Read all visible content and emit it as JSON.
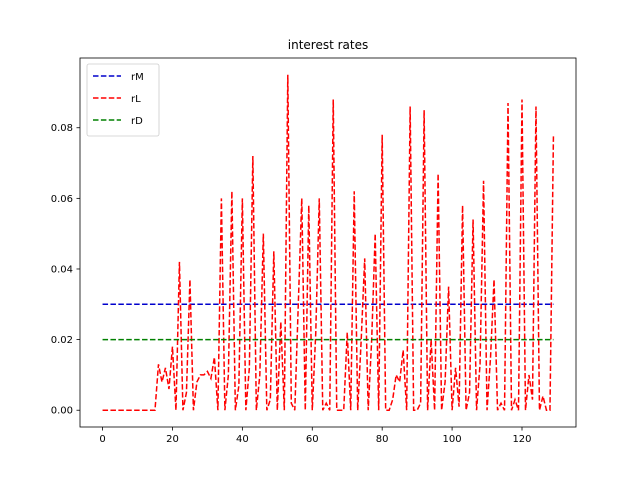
{
  "chart_data": {
    "type": "line",
    "title": "interest rates",
    "xlabel": "",
    "ylabel": "",
    "xlim": [
      -6.45,
      135.45
    ],
    "ylim": [
      -0.00475,
      0.09975
    ],
    "xticks": [
      0,
      20,
      40,
      60,
      80,
      100,
      120
    ],
    "xtick_labels": [
      "0",
      "20",
      "40",
      "60",
      "80",
      "100",
      "120"
    ],
    "yticks": [
      0.0,
      0.02,
      0.04,
      0.06,
      0.08
    ],
    "ytick_labels": [
      "0.00",
      "0.02",
      "0.04",
      "0.06",
      "0.08"
    ],
    "grid": false,
    "legend": {
      "position": "top-left"
    },
    "series": [
      {
        "name": "rM",
        "color": "#0000cc",
        "dash": "dashed",
        "x": [
          0,
          129
        ],
        "y": [
          0.03,
          0.03
        ]
      },
      {
        "name": "rL",
        "color": "#ff0000",
        "dash": "dashed",
        "x": [
          0,
          1,
          2,
          3,
          4,
          5,
          6,
          7,
          8,
          9,
          10,
          11,
          12,
          13,
          14,
          15,
          16,
          17,
          18,
          19,
          20,
          21,
          22,
          23,
          24,
          25,
          26,
          27,
          28,
          29,
          30,
          31,
          32,
          33,
          34,
          35,
          36,
          37,
          38,
          39,
          40,
          41,
          42,
          43,
          44,
          45,
          46,
          47,
          48,
          49,
          50,
          51,
          52,
          53,
          54,
          55,
          56,
          57,
          58,
          59,
          60,
          61,
          62,
          63,
          64,
          65,
          66,
          67,
          68,
          69,
          70,
          71,
          72,
          73,
          74,
          75,
          76,
          77,
          78,
          79,
          80,
          81,
          82,
          83,
          84,
          85,
          86,
          87,
          88,
          89,
          90,
          91,
          92,
          93,
          94,
          95,
          96,
          97,
          98,
          99,
          100,
          101,
          102,
          103,
          104,
          105,
          106,
          107,
          108,
          109,
          110,
          111,
          112,
          113,
          114,
          115,
          116,
          117,
          118,
          119,
          120,
          121,
          122,
          123,
          124,
          125,
          126,
          127,
          128,
          129
        ],
        "y": [
          0,
          0,
          0,
          0,
          0,
          0,
          0,
          0,
          0,
          0,
          0,
          0,
          0,
          0,
          0,
          0,
          0.013,
          0.008,
          0.012,
          0.006,
          0.018,
          0,
          0.042,
          0,
          0.005,
          0.037,
          0,
          0.008,
          0.01,
          0.01,
          0.011,
          0.009,
          0.015,
          0,
          0.06,
          0,
          0.01,
          0.062,
          0,
          0.007,
          0.06,
          0,
          0.012,
          0.072,
          0,
          0.01,
          0.05,
          0,
          0.003,
          0.045,
          0,
          0.025,
          0,
          0.095,
          0.002,
          0,
          0.03,
          0.06,
          0,
          0.058,
          0,
          0.022,
          0.06,
          0,
          0.002,
          0,
          0.088,
          0,
          0,
          0,
          0.022,
          0,
          0.062,
          0,
          0.02,
          0.043,
          0,
          0.02,
          0.05,
          0,
          0.078,
          0,
          0,
          0.003,
          0.01,
          0.008,
          0.017,
          0,
          0.086,
          0,
          0,
          0.002,
          0.085,
          0,
          0.02,
          0,
          0.067,
          0,
          0.008,
          0.035,
          0,
          0.012,
          0.001,
          0.058,
          0,
          0.005,
          0.054,
          0,
          0.013,
          0.065,
          0,
          0.015,
          0.037,
          0,
          0.002,
          0,
          0.087,
          0,
          0.003,
          0,
          0.088,
          0,
          0.01,
          0.003,
          0.086,
          0,
          0.004,
          0,
          0,
          0.078
        ]
      },
      {
        "name": "rD",
        "color": "#008000",
        "dash": "dashed",
        "x": [
          0,
          129
        ],
        "y": [
          0.02,
          0.02
        ]
      }
    ]
  }
}
